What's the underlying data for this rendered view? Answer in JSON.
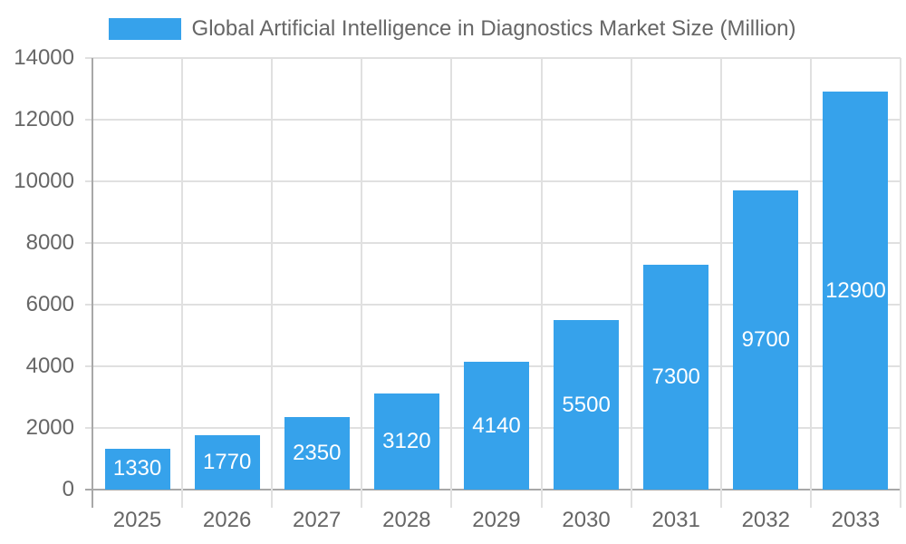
{
  "chart_data": {
    "type": "bar",
    "title": "",
    "legend": [
      "Global Artificial Intelligence in Diagnostics Market Size (Million)"
    ],
    "legend_position": "top",
    "categories": [
      "2025",
      "2026",
      "2027",
      "2028",
      "2029",
      "2030",
      "2031",
      "2032",
      "2033"
    ],
    "series": [
      {
        "name": "Global Artificial Intelligence in Diagnostics Market Size (Million)",
        "values": [
          1330,
          1770,
          2350,
          3120,
          4140,
          5500,
          7300,
          9700,
          12900
        ],
        "color": "#36a2eb"
      }
    ],
    "xlabel": "",
    "ylabel": "",
    "ylim": [
      0,
      14000
    ],
    "yticks": [
      0,
      2000,
      4000,
      6000,
      8000,
      10000,
      12000,
      14000
    ],
    "grid": true,
    "data_labels": true
  },
  "legend": {
    "label": "Global Artificial Intelligence in Diagnostics Market Size (Million)"
  },
  "yaxis": {
    "ticks": [
      "14000",
      "12000",
      "10000",
      "8000",
      "6000",
      "4000",
      "2000",
      "0"
    ]
  },
  "xaxis": {
    "ticks": [
      "2025",
      "2026",
      "2027",
      "2028",
      "2029",
      "2030",
      "2031",
      "2032",
      "2033"
    ]
  },
  "bars": {
    "labels": [
      "1330",
      "1770",
      "2350",
      "3120",
      "4140",
      "5500",
      "7300",
      "9700",
      "12900"
    ]
  }
}
